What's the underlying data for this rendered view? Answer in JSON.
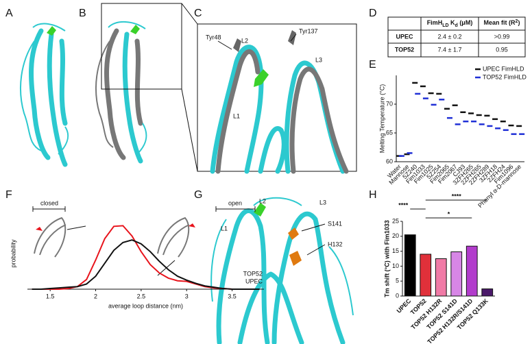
{
  "panel_labels": [
    "A",
    "B",
    "C",
    "D",
    "E",
    "F",
    "G",
    "H"
  ],
  "image_labels": {
    "c": [
      "Tyr48",
      "L2",
      "Tyr137",
      "L3",
      "L1"
    ],
    "g": [
      "L2",
      "L3",
      "L1",
      "S141",
      "H132"
    ]
  },
  "table": {
    "column_headers": [
      [
        {
          "text": "FimH"
        },
        {
          "text": "LD",
          "sub": true
        },
        {
          "text": " K"
        },
        {
          "text": "d",
          "sub": true
        },
        {
          "text": " (μM)"
        }
      ],
      [
        {
          "text": "Mean fit (R"
        },
        {
          "text": "2",
          "sup": true
        },
        {
          "text": ")"
        }
      ]
    ],
    "rows": [
      [
        "UPEC",
        "2.4 ± 0.2",
        ">0.99"
      ],
      [
        "TOP52",
        "7.4 ± 1.7",
        "0.95"
      ]
    ]
  },
  "chart_data": [
    {
      "type": "dot",
      "y_label": "Melting Temperature (°C)",
      "categories": [
        "Water",
        "Mannose",
        "5Z240",
        "Fim1033",
        "Fim1025",
        "5Z254",
        "Fim2065",
        "Fim2067",
        "CJ93",
        "3ZFH265",
        "2ZFH265",
        "2ZFH289",
        "3ZFH18",
        "2ZFH24",
        "Fim1096",
        "Phenyl α-D-mannose"
      ],
      "series": [
        {
          "name": "UPEC FimHLD",
          "color": "#111111",
          "values": [
            61.0,
            61.3,
            73.7,
            73.1,
            71.9,
            71.8,
            69.2,
            69.8,
            68.6,
            68.4,
            68.1,
            68.0,
            67.4,
            67.0,
            66.3,
            66.2
          ]
        },
        {
          "name": "TOP52 FimHLD",
          "color": "#1f2fd6",
          "values": [
            61.0,
            61.5,
            71.8,
            71.0,
            69.9,
            70.8,
            67.6,
            66.5,
            67.0,
            67.0,
            66.5,
            66.2,
            65.8,
            65.5,
            64.8,
            64.8
          ]
        }
      ],
      "ylim": [
        60,
        75
      ],
      "yticks": [
        60,
        65,
        70
      ],
      "legend": "upper right"
    },
    {
      "type": "line",
      "x_label": "average loop distance (nm)",
      "y_label": "probability",
      "x": [
        1.3,
        1.4,
        1.5,
        1.6,
        1.7,
        1.8,
        1.9,
        2.0,
        2.1,
        2.2,
        2.3,
        2.4,
        2.5,
        2.6,
        2.7,
        2.8,
        2.9,
        3.0,
        3.1,
        3.2,
        3.3,
        3.4,
        3.5,
        3.6,
        3.7,
        3.8
      ],
      "series": [
        {
          "name": "TOP52",
          "color": "#e8141c",
          "values": [
            0,
            0,
            0,
            0,
            0.01,
            0.04,
            0.15,
            0.45,
            0.78,
            0.97,
            0.98,
            0.82,
            0.58,
            0.38,
            0.25,
            0.17,
            0.13,
            0.12,
            0.08,
            0.04,
            0.02,
            0.01,
            0,
            0,
            0,
            0
          ]
        },
        {
          "name": "UPEC",
          "color": "#111111",
          "values": [
            0,
            0,
            0.01,
            0.02,
            0.03,
            0.04,
            0.08,
            0.2,
            0.4,
            0.6,
            0.72,
            0.76,
            0.7,
            0.58,
            0.43,
            0.3,
            0.2,
            0.14,
            0.09,
            0.05,
            0.03,
            0.01,
            0,
            0,
            0,
            0
          ]
        }
      ],
      "xlim": [
        1.25,
        3.85
      ],
      "xticks": [
        1.5,
        2.0,
        2.5,
        3.0,
        3.5
      ],
      "ylim": [
        0,
        1.1
      ],
      "annotations": [
        "closed",
        "open"
      ],
      "legend": "lower right"
    },
    {
      "type": "bar",
      "y_label": "Tm shift (°C) with Fim1033",
      "categories": [
        "UPEC",
        "TOP52",
        "TOP52 H132R",
        "TOP52 S141D",
        "TOP52 H132R/S141D",
        "TOP52 Q133K"
      ],
      "values": [
        20.5,
        14.0,
        12.5,
        14.8,
        16.7,
        2.4
      ],
      "colors": [
        "#000000",
        "#e0303a",
        "#f07aa6",
        "#d786e6",
        "#b23ccc",
        "#4b1a6a"
      ],
      "ylim": [
        0,
        25
      ],
      "yticks": [
        0,
        5,
        10,
        15,
        20,
        25
      ],
      "annotations": [
        "****",
        "****",
        "*"
      ]
    }
  ]
}
